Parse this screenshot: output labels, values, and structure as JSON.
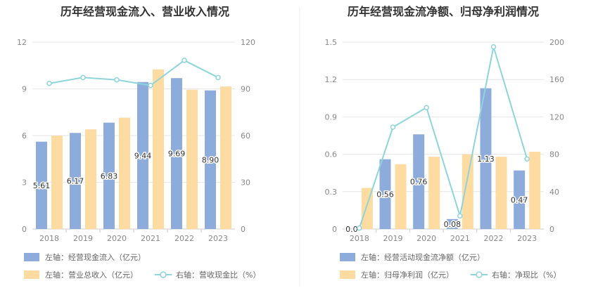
{
  "chart_data": [
    {
      "type": "bar",
      "title": "历年经营现金流入、营业收入情况",
      "categories": [
        "2018",
        "2019",
        "2020",
        "2021",
        "2022",
        "2023"
      ],
      "left_axis": {
        "ylim": [
          0,
          12
        ],
        "ticks": [
          "0",
          "3",
          "6",
          "9",
          "12"
        ]
      },
      "right_axis": {
        "ylim": [
          0,
          120
        ],
        "ticks": [
          "0",
          "30",
          "60",
          "90",
          "120"
        ]
      },
      "series": [
        {
          "name": "左轴：经营现金流入（亿元）",
          "type": "bar",
          "axis": "left",
          "color": "#8EACDB",
          "values": [
            5.61,
            6.17,
            6.83,
            9.44,
            9.69,
            8.9
          ],
          "labels": [
            "5.61",
            "6.17",
            "6.83",
            "9.44",
            "9.69",
            "8.90"
          ]
        },
        {
          "name": "左轴：营业总收入（亿元）",
          "type": "bar",
          "axis": "left",
          "color": "#FDDBA1",
          "values": [
            6.0,
            6.4,
            7.15,
            10.25,
            8.95,
            9.15
          ]
        },
        {
          "name": "右轴：营收现金比（%）",
          "type": "line",
          "axis": "right",
          "color": "#8DD5DA",
          "values": [
            93.5,
            97.3,
            95.8,
            92.2,
            108.3,
            97.3
          ]
        }
      ],
      "legend_position": "bottom"
    },
    {
      "type": "bar",
      "title": "历年经营现金流净额、归母净利润情况",
      "categories": [
        "2018",
        "2019",
        "2020",
        "2021",
        "2022",
        "2023"
      ],
      "left_axis": {
        "ylim": [
          0,
          1.5
        ],
        "ticks": [
          "0",
          "0.3",
          "0.6",
          "0.9",
          "1.2",
          "1.5"
        ]
      },
      "right_axis": {
        "ylim": [
          0,
          200
        ],
        "ticks": [
          "0",
          "40",
          "80",
          "120",
          "160",
          "200"
        ]
      },
      "series": [
        {
          "name": "左轴：经营活动现金流净额（亿元）",
          "type": "bar",
          "axis": "left",
          "color": "#8EACDB",
          "values": [
            0.0,
            0.56,
            0.76,
            0.08,
            1.13,
            0.47
          ],
          "labels": [
            "0.0",
            "0.56",
            "0.76",
            "0.08",
            "1.13",
            "0.47"
          ]
        },
        {
          "name": "左轴：归母净利润（亿元）",
          "type": "bar",
          "axis": "left",
          "color": "#FDDBA1",
          "values": [
            0.33,
            0.52,
            0.58,
            0.6,
            0.58,
            0.62
          ]
        },
        {
          "name": "右轴：净现比（%）",
          "type": "line",
          "axis": "right",
          "color": "#8DD5DA",
          "values": [
            1,
            109,
            130,
            14,
            195,
            75
          ]
        }
      ],
      "legend_position": "bottom"
    }
  ]
}
